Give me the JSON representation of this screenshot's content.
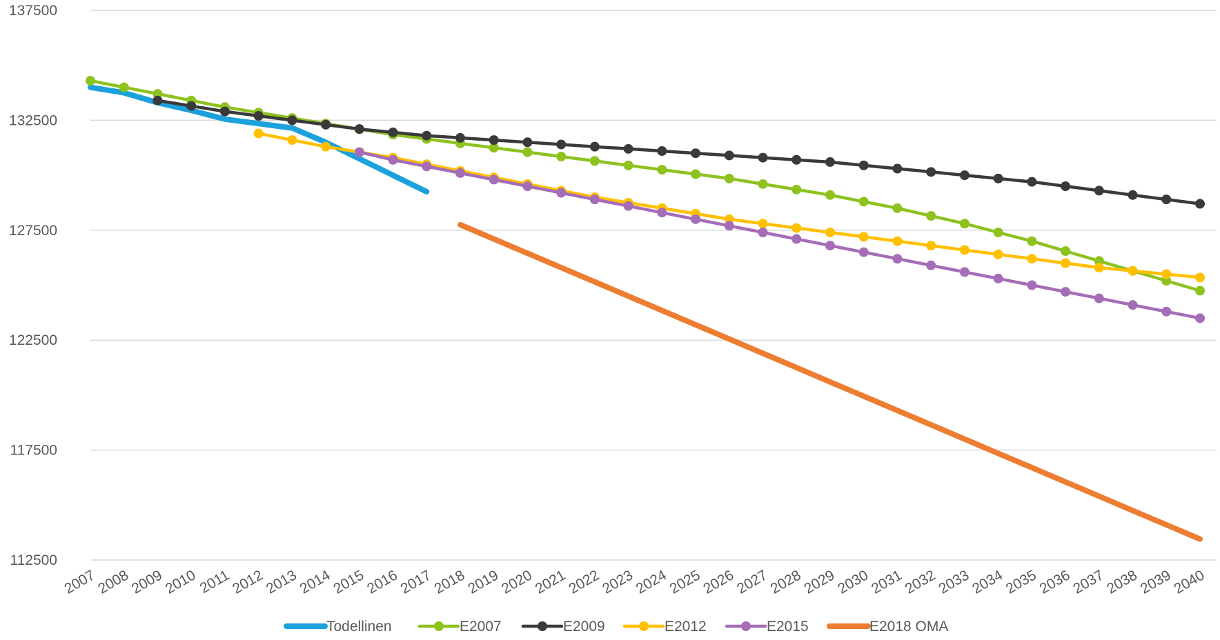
{
  "chart_data": {
    "type": "line",
    "title": "",
    "xlabel": "",
    "ylabel": "",
    "ylim": [
      112500,
      137500
    ],
    "yticks": [
      112500,
      117500,
      122500,
      127500,
      132500,
      137500
    ],
    "grid": true,
    "legend_position": "bottom",
    "x": [
      2007,
      2008,
      2009,
      2010,
      2011,
      2012,
      2013,
      2014,
      2015,
      2016,
      2017,
      2018,
      2019,
      2020,
      2021,
      2022,
      2023,
      2024,
      2025,
      2026,
      2027,
      2028,
      2029,
      2030,
      2031,
      2032,
      2033,
      2034,
      2035,
      2036,
      2037,
      2038,
      2039,
      2040
    ],
    "series": [
      {
        "name": "Todellinen",
        "color": "#1CA1DC",
        "markers": false,
        "thick": true,
        "x": [
          2007,
          2008,
          2009,
          2010,
          2011,
          2012,
          2013,
          2014,
          2015,
          2016,
          2017
        ],
        "values": [
          134000,
          133750,
          133300,
          132950,
          132550,
          132350,
          132150,
          131500,
          130750,
          130000,
          129250
        ]
      },
      {
        "name": "E2007",
        "color": "#8DC21F",
        "markers": true,
        "x": [
          2007,
          2008,
          2009,
          2010,
          2011,
          2012,
          2013,
          2014,
          2015,
          2016,
          2017,
          2018,
          2019,
          2020,
          2021,
          2022,
          2023,
          2024,
          2025,
          2026,
          2027,
          2028,
          2029,
          2030,
          2031,
          2032,
          2033,
          2034,
          2035,
          2036,
          2037,
          2038,
          2039,
          2040
        ],
        "values": [
          134300,
          134000,
          133700,
          133400,
          133100,
          132850,
          132600,
          132350,
          132100,
          131850,
          131650,
          131450,
          131250,
          131050,
          130850,
          130650,
          130450,
          130250,
          130050,
          129850,
          129600,
          129350,
          129100,
          128800,
          128500,
          128150,
          127800,
          127400,
          127000,
          126550,
          126100,
          125650,
          125200,
          124750
        ]
      },
      {
        "name": "E2009",
        "color": "#3A3A3A",
        "markers": true,
        "x": [
          2009,
          2010,
          2011,
          2012,
          2013,
          2014,
          2015,
          2016,
          2017,
          2018,
          2019,
          2020,
          2021,
          2022,
          2023,
          2024,
          2025,
          2026,
          2027,
          2028,
          2029,
          2030,
          2031,
          2032,
          2033,
          2034,
          2035,
          2036,
          2037,
          2038,
          2039,
          2040
        ],
        "values": [
          133400,
          133150,
          132900,
          132700,
          132500,
          132300,
          132100,
          131950,
          131800,
          131700,
          131600,
          131500,
          131400,
          131300,
          131200,
          131100,
          131000,
          130900,
          130800,
          130700,
          130600,
          130450,
          130300,
          130150,
          130000,
          129850,
          129700,
          129500,
          129300,
          129100,
          128900,
          128700
        ]
      },
      {
        "name": "E2012",
        "color": "#FFC000",
        "markers": true,
        "x": [
          2012,
          2013,
          2014,
          2015,
          2016,
          2017,
          2018,
          2019,
          2020,
          2021,
          2022,
          2023,
          2024,
          2025,
          2026,
          2027,
          2028,
          2029,
          2030,
          2031,
          2032,
          2033,
          2034,
          2035,
          2036,
          2037,
          2038,
          2039,
          2040
        ],
        "values": [
          131900,
          131600,
          131300,
          131050,
          130800,
          130500,
          130200,
          129900,
          129600,
          129300,
          129000,
          128750,
          128500,
          128250,
          128000,
          127800,
          127600,
          127400,
          127200,
          127000,
          126800,
          126600,
          126400,
          126200,
          126000,
          125800,
          125650,
          125500,
          125350
        ]
      },
      {
        "name": "E2015",
        "color": "#A56DB8",
        "markers": true,
        "x": [
          2015,
          2016,
          2017,
          2018,
          2019,
          2020,
          2021,
          2022,
          2023,
          2024,
          2025,
          2026,
          2027,
          2028,
          2029,
          2030,
          2031,
          2032,
          2033,
          2034,
          2035,
          2036,
          2037,
          2038,
          2039,
          2040
        ],
        "values": [
          131050,
          130700,
          130400,
          130100,
          129800,
          129500,
          129200,
          128900,
          128600,
          128300,
          128000,
          127700,
          127400,
          127100,
          126800,
          126500,
          126200,
          125900,
          125600,
          125300,
          125000,
          124700,
          124400,
          124100,
          123800,
          123500
        ]
      },
      {
        "name": "E2018 OMA",
        "color": "#ED7D31",
        "markers": false,
        "thick": true,
        "x": [
          2018,
          2019,
          2020,
          2021,
          2022,
          2023,
          2024,
          2025,
          2026,
          2027,
          2028,
          2029,
          2030,
          2031,
          2032,
          2033,
          2034,
          2035,
          2036,
          2037,
          2038,
          2039,
          2040
        ],
        "values": [
          127750,
          127100,
          126450,
          125800,
          125150,
          124500,
          123850,
          123200,
          122550,
          121900,
          121250,
          120600,
          119950,
          119300,
          118650,
          118000,
          117350,
          116700,
          116050,
          115400,
          114750,
          114100,
          113450
        ]
      }
    ]
  }
}
